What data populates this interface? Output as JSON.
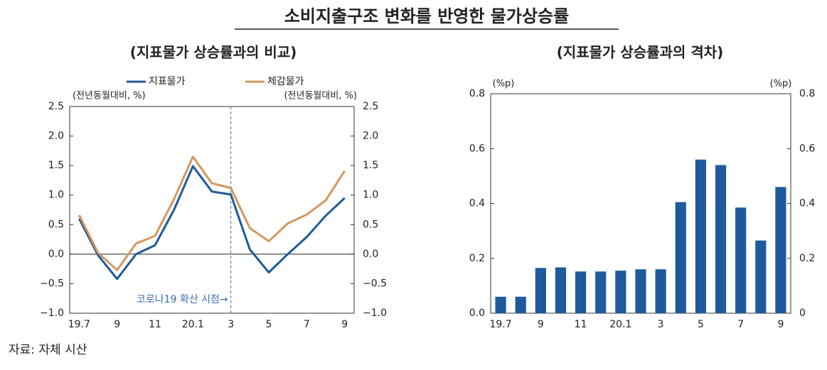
{
  "title": "소비지출구조 변화를 반영한 물가상승률",
  "source": "자료: 자체 시산",
  "chart_data": [
    {
      "type": "line",
      "title": "(지표물가 상승률과의 비교)",
      "y_unit_label": "(전년동월대비, %)",
      "y2_unit_label": "(전년동월대비, %)",
      "categories": [
        "19.7",
        null,
        "9",
        null,
        "11",
        null,
        "20.1",
        null,
        "3",
        null,
        "5",
        null,
        "7",
        null,
        "9"
      ],
      "series": [
        {
          "name": "지표물가",
          "color": "#1f5a9c",
          "values": [
            0.6,
            -0.02,
            -0.42,
            0.0,
            0.15,
            0.75,
            1.49,
            1.06,
            1.01,
            0.08,
            -0.31,
            0.0,
            0.29,
            0.65,
            0.95
          ]
        },
        {
          "name": "체감물가",
          "color": "#d4975e",
          "values": [
            0.66,
            0.02,
            -0.27,
            0.18,
            0.31,
            0.93,
            1.65,
            1.2,
            1.12,
            0.44,
            0.22,
            0.52,
            0.67,
            0.91,
            1.41
          ]
        }
      ],
      "ylim": [
        -1.0,
        2.5
      ],
      "yticks": [
        {
          "value": -1.0,
          "label": "−1.0"
        },
        {
          "value": -0.5,
          "label": "−0.5"
        },
        {
          "value": 0.0,
          "label": "0.0"
        },
        0.5,
        {
          "value": 1.0,
          "label": "1.0"
        },
        1.5,
        {
          "value": 2.0,
          "label": "2.0"
        },
        2.5
      ],
      "y2lim": [
        -1.0,
        2.5
      ],
      "y2ticks": [
        {
          "value": -1.0,
          "label": "−1.0"
        },
        {
          "value": -0.5,
          "label": "−0.5"
        },
        {
          "value": 0.0,
          "label": "0.0"
        },
        0.5,
        {
          "value": 1.0,
          "label": "1.0"
        },
        1.5,
        {
          "value": 2.0,
          "label": "2.0"
        },
        2.5
      ],
      "zero_line": true,
      "vline_category": "3",
      "annotation": "코로나19 확산 시점→"
    },
    {
      "type": "bar",
      "title": "(지표물가 상승률과의 격차)",
      "y_unit_label": "(%p)",
      "y2_unit_label": "(%p)",
      "categories": [
        "19.7",
        null,
        "9",
        null,
        "11",
        null,
        "20.1",
        null,
        "3",
        null,
        "5",
        null,
        "7",
        null,
        "9"
      ],
      "values": [
        0.06,
        0.06,
        0.165,
        0.167,
        0.152,
        0.152,
        0.155,
        0.16,
        0.16,
        0.405,
        0.56,
        0.54,
        0.385,
        0.265,
        0.46
      ],
      "color": "#1f5a9c",
      "ylim": [
        0,
        0.8
      ],
      "yticks": [
        {
          "value": 0,
          "label": "0.0"
        },
        0.2,
        0.4,
        0.6,
        0.8
      ],
      "y2lim": [
        0,
        0.8
      ],
      "y2ticks": [
        0,
        0.2,
        0.4,
        0.6,
        0.8
      ]
    }
  ]
}
